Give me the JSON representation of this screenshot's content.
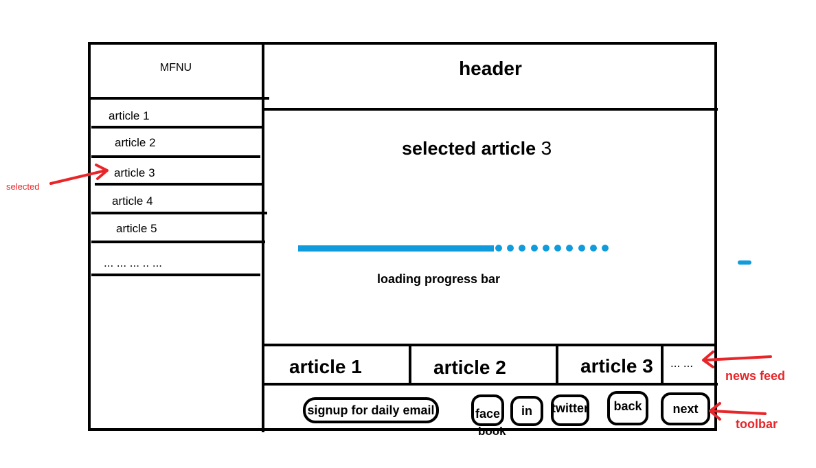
{
  "menu": {
    "title": "MFNU",
    "items": [
      "article 1",
      "article 2",
      "article 3",
      "article 4",
      "article 5",
      "... ... ... .. ..."
    ]
  },
  "header": {
    "title": "header"
  },
  "content": {
    "selected_label": "selected article",
    "selected_number": "3",
    "progress_caption": "loading progress bar",
    "progress_fraction": 0.63
  },
  "news_feed": {
    "items": [
      "article 1",
      "article 2",
      "article 3"
    ],
    "more": "... ..."
  },
  "toolbar": {
    "signup": "signup for daily email",
    "facebook_line1": "face",
    "facebook_line2": "book",
    "linkedin": "in",
    "twitter": "twitter",
    "back": "back",
    "next": "next"
  },
  "annotations": {
    "selected": "selected",
    "news_feed": "news feed",
    "toolbar": "toolbar"
  },
  "colors": {
    "progress": "#109bdc",
    "annotation": "#e8262a"
  }
}
